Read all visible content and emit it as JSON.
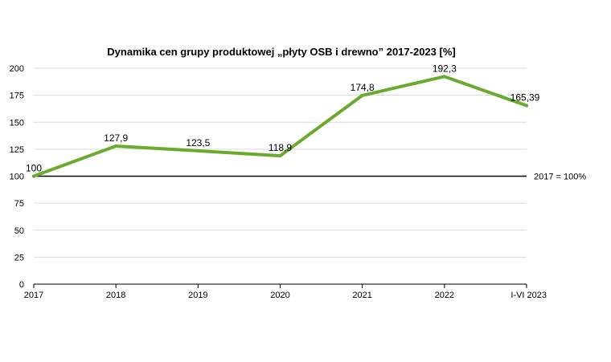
{
  "chart_data": {
    "type": "line",
    "title": "Dynamika cen grupy produktowej „płyty OSB i drewno” 2017-2023 [%]",
    "categories": [
      "2017",
      "2018",
      "2019",
      "2020",
      "2021",
      "2022",
      "I-VI 2023"
    ],
    "series": [
      {
        "values": [
          100,
          127.9,
          123.5,
          118.9,
          174.8,
          192.3,
          165.39
        ],
        "labels": [
          "100",
          "127,9",
          "123,5",
          "118,9",
          "174,8",
          "192,3",
          "165,39"
        ],
        "color": "#6aaa2e"
      }
    ],
    "yticks": [
      "0",
      "25",
      "50",
      "75",
      "100",
      "125",
      "150",
      "175",
      "200"
    ],
    "ylim": [
      0,
      200
    ],
    "grid": true,
    "reference_line": {
      "value": 100,
      "label": "2017 = 100%",
      "color": "#000000"
    }
  }
}
